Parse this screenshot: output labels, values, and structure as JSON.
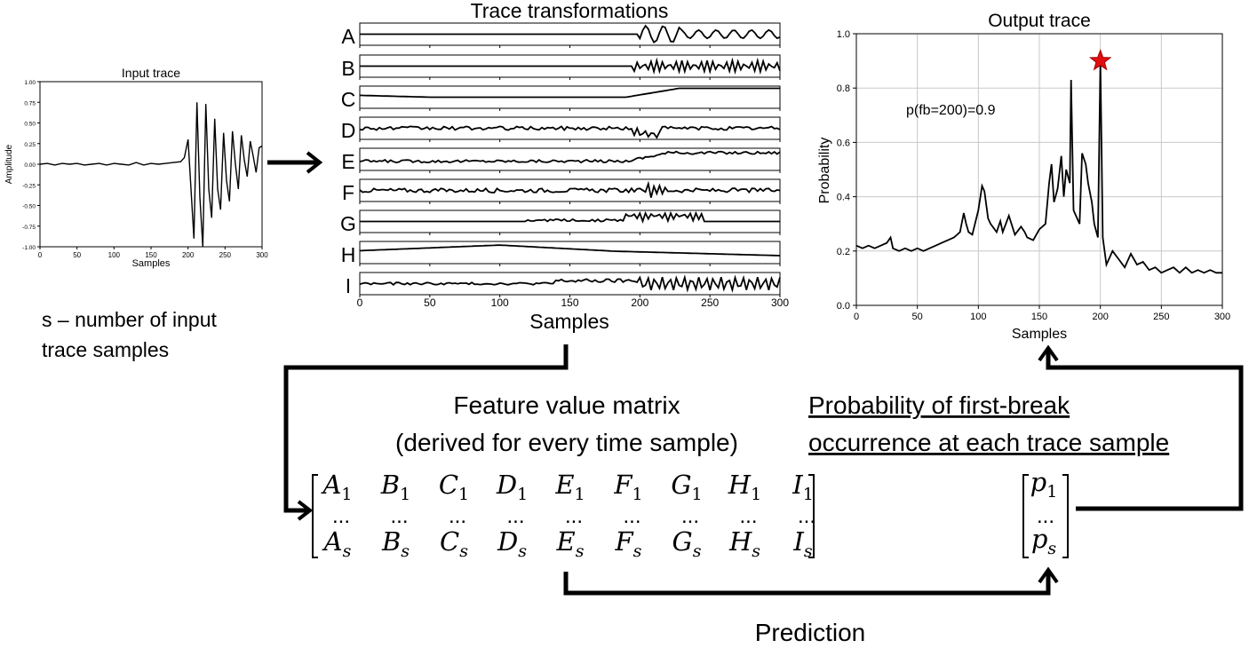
{
  "input_panel": {
    "title": "Input trace",
    "xlabel": "Samples",
    "ylabel": "Amplitude",
    "xticks": [
      "0",
      "50",
      "100",
      "150",
      "200",
      "250",
      "300"
    ],
    "yticks": [
      "1.00",
      "0.75",
      "0.50",
      "0.25",
      "0.00",
      "-0.25",
      "-0.50",
      "-0.75",
      "-1.00"
    ],
    "note_line1": "s – number of input",
    "note_line2": "trace samples"
  },
  "transform_panel": {
    "title": "Trace transformations",
    "xlabel": "Samples",
    "xticks": [
      "0",
      "50",
      "100",
      "150",
      "200",
      "250",
      "300"
    ],
    "rows": [
      "A",
      "B",
      "C",
      "D",
      "E",
      "F",
      "G",
      "H",
      "I"
    ]
  },
  "output_panel": {
    "title": "Output trace",
    "xlabel": "Samples",
    "ylabel": "Probability",
    "xticks": [
      "0",
      "50",
      "100",
      "150",
      "200",
      "250",
      "300"
    ],
    "yticks": [
      "1.0",
      "0.8",
      "0.6",
      "0.4",
      "0.2",
      "0.0"
    ],
    "annotation": "p(fb=200)=0.9",
    "marker_color": "#e01010"
  },
  "matrix": {
    "title_line1": "Feature value matrix",
    "title_line2": "(derived for every time sample)",
    "letters": [
      "A",
      "B",
      "C",
      "D",
      "E",
      "F",
      "G",
      "H",
      "I"
    ],
    "first_sub": "1",
    "last_sub": "s",
    "ellipsis": "..."
  },
  "prob_vector": {
    "title_line1": "Probability of first-break",
    "title_line2": "occurrence at  each trace sample",
    "symbol": "p",
    "first_sub": "1",
    "last_sub": "s",
    "ellipsis": "..."
  },
  "prediction_label": "Prediction",
  "chart_data": [
    {
      "type": "line",
      "title": "Input trace",
      "xlabel": "Samples",
      "ylabel": "Amplitude",
      "xlim": [
        0,
        300
      ],
      "ylim": [
        -1.0,
        1.0
      ],
      "x": [
        0,
        10,
        20,
        30,
        40,
        50,
        60,
        70,
        80,
        90,
        100,
        110,
        120,
        130,
        140,
        150,
        160,
        170,
        180,
        190,
        195,
        200,
        204,
        208,
        212,
        216,
        220,
        224,
        228,
        232,
        236,
        240,
        244,
        248,
        252,
        256,
        260,
        264,
        268,
        272,
        276,
        280,
        284,
        288,
        292,
        296,
        300
      ],
      "y": [
        0,
        0.01,
        -0.01,
        0.01,
        0,
        0.01,
        -0.01,
        0,
        0.01,
        -0.01,
        0.01,
        0,
        -0.01,
        0.02,
        -0.01,
        0.01,
        0,
        0.01,
        0.02,
        0.03,
        0.08,
        0.3,
        -0.3,
        -0.9,
        0.75,
        -0.4,
        -1.0,
        0.73,
        -0.3,
        -0.65,
        0.55,
        -0.3,
        -0.55,
        0.38,
        -0.2,
        -0.45,
        0.4,
        0.0,
        -0.3,
        0.35,
        0.05,
        -0.15,
        0.28,
        0.1,
        -0.1,
        0.2,
        0.22
      ]
    },
    {
      "type": "line",
      "title": "Output trace",
      "xlabel": "Samples",
      "ylabel": "Probability",
      "xlim": [
        0,
        300
      ],
      "ylim": [
        0.0,
        1.0
      ],
      "x": [
        0,
        5,
        10,
        15,
        20,
        25,
        28,
        30,
        35,
        40,
        45,
        50,
        55,
        60,
        65,
        70,
        75,
        80,
        85,
        88,
        90,
        92,
        95,
        100,
        103,
        105,
        108,
        110,
        115,
        118,
        120,
        125,
        130,
        135,
        138,
        140,
        145,
        150,
        155,
        158,
        160,
        162,
        165,
        168,
        170,
        172,
        175,
        176,
        178,
        180,
        183,
        185,
        188,
        190,
        193,
        195,
        198,
        200,
        202,
        205,
        210,
        215,
        220,
        225,
        230,
        235,
        240,
        245,
        250,
        255,
        260,
        265,
        270,
        275,
        280,
        285,
        290,
        295,
        300
      ],
      "y": [
        0.22,
        0.21,
        0.22,
        0.21,
        0.22,
        0.23,
        0.25,
        0.21,
        0.2,
        0.21,
        0.2,
        0.21,
        0.2,
        0.21,
        0.22,
        0.23,
        0.24,
        0.25,
        0.27,
        0.34,
        0.3,
        0.27,
        0.26,
        0.35,
        0.44,
        0.42,
        0.32,
        0.3,
        0.27,
        0.31,
        0.27,
        0.33,
        0.26,
        0.29,
        0.27,
        0.25,
        0.24,
        0.28,
        0.3,
        0.45,
        0.52,
        0.38,
        0.43,
        0.55,
        0.4,
        0.5,
        0.45,
        0.83,
        0.35,
        0.33,
        0.3,
        0.56,
        0.52,
        0.45,
        0.38,
        0.3,
        0.25,
        0.9,
        0.25,
        0.15,
        0.2,
        0.17,
        0.14,
        0.19,
        0.15,
        0.16,
        0.13,
        0.14,
        0.12,
        0.13,
        0.14,
        0.12,
        0.14,
        0.12,
        0.13,
        0.12,
        0.13,
        0.12,
        0.12
      ]
    }
  ]
}
